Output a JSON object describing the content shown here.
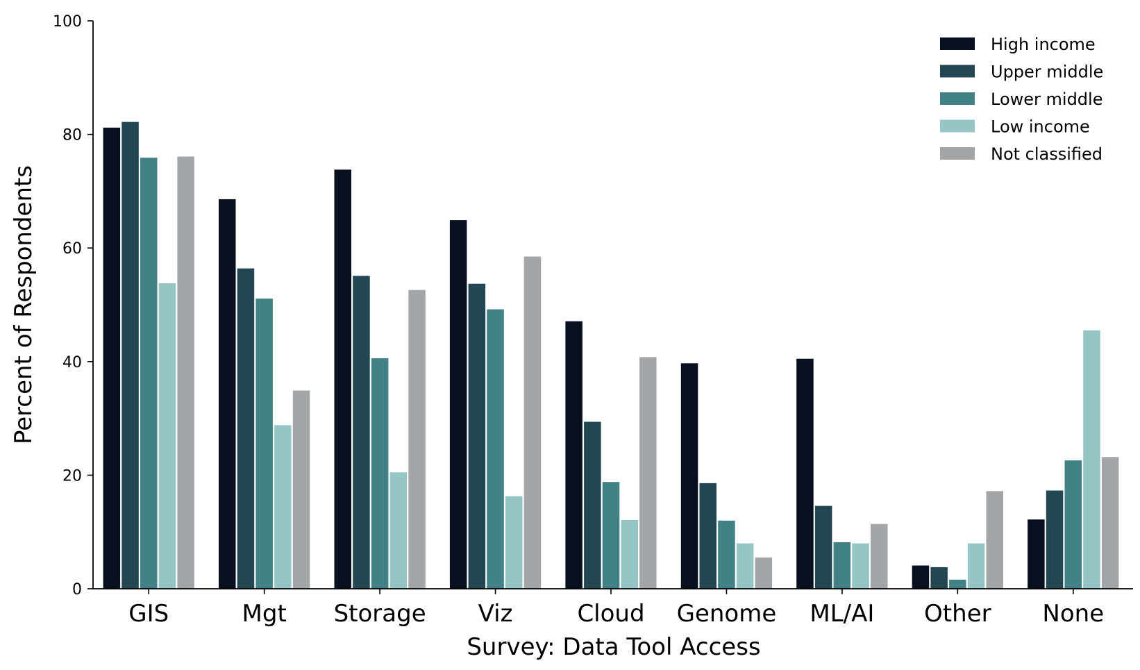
{
  "chart_data": {
    "type": "bar",
    "title": "",
    "xlabel": "Survey: Data Tool Access",
    "ylabel": "Percent of Respondents",
    "ylim": [
      0,
      100
    ],
    "yticks": [
      0,
      20,
      40,
      60,
      80,
      100
    ],
    "grid": false,
    "legend_position": "top-right",
    "categories": [
      "GIS",
      "Mgt",
      "Storage",
      "Viz",
      "Cloud",
      "Genome",
      "ML/AI",
      "Other",
      "None"
    ],
    "series": [
      {
        "name": "High income",
        "color": "#08101f",
        "values": [
          81.2,
          68.6,
          73.8,
          64.9,
          47.1,
          39.7,
          40.5,
          4.1,
          12.2
        ]
      },
      {
        "name": "Upper middle",
        "color": "#224652",
        "values": [
          82.2,
          56.4,
          55.1,
          53.7,
          29.4,
          18.6,
          14.6,
          3.8,
          17.3
        ]
      },
      {
        "name": "Lower middle",
        "color": "#428287",
        "values": [
          75.9,
          51.1,
          40.6,
          49.2,
          18.8,
          12.0,
          8.2,
          1.6,
          22.6
        ]
      },
      {
        "name": "Low income",
        "color": "#96c5c5",
        "values": [
          53.8,
          28.8,
          20.5,
          16.3,
          12.1,
          8.0,
          8.0,
          8.0,
          45.5
        ]
      },
      {
        "name": "Not classified",
        "color": "#a3a6a8",
        "values": [
          76.1,
          34.9,
          52.6,
          58.5,
          40.8,
          5.5,
          11.4,
          17.2,
          23.2
        ]
      }
    ]
  }
}
